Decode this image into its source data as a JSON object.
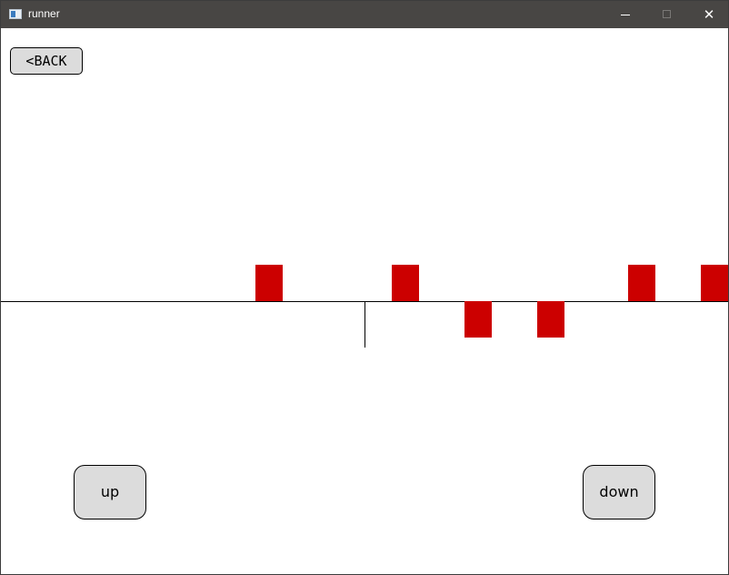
{
  "window": {
    "title": "runner",
    "minimize_icon": "minimize-icon",
    "maximize_icon": "maximize-icon",
    "close_icon": "close-icon",
    "close_glyph": "✕"
  },
  "game": {
    "back_label": "<BACK",
    "up_label": "up",
    "down_label": "down",
    "obstacle_color": "#cc0000",
    "obstacle_count": 6
  }
}
